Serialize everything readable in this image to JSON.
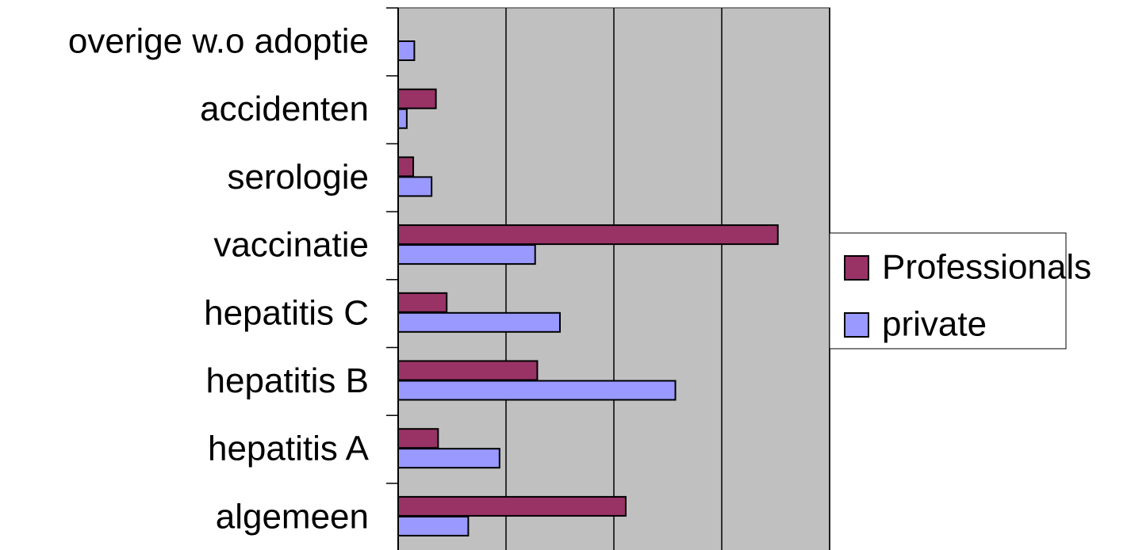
{
  "chart_data": {
    "type": "hbar",
    "categories": [
      "overige w.o adoptie",
      "accidenten",
      "serologie",
      "vaccinatie",
      "hepatitis C",
      "hepatitis B",
      "hepatitis A",
      "algemeen"
    ],
    "series": [
      {
        "name": "Professionals",
        "color": "#993366",
        "values": [
          null,
          0.35,
          0.14,
          3.52,
          0.45,
          1.29,
          0.37,
          2.11
        ]
      },
      {
        "name": "private",
        "color": "#9999ff",
        "values": [
          0.15,
          0.08,
          0.31,
          1.27,
          1.5,
          2.57,
          0.94,
          0.65
        ]
      }
    ],
    "xlim": [
      0,
      4
    ],
    "xticks": [
      0,
      1,
      2,
      3,
      4
    ],
    "grid": true,
    "legend": "right",
    "background": "#c0c0c0"
  }
}
